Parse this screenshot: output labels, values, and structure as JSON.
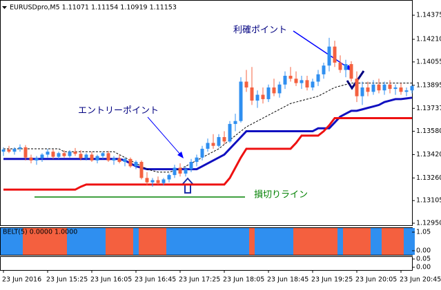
{
  "chart_data": [
    {
      "type": "candlestick",
      "title": "EURUSDpro,M5  1.11071 1.11154 1.10919 1.11153",
      "categories": [
        "23 Jun 2016",
        null,
        null,
        null,
        null,
        null,
        null,
        null,
        "23 Jun 15:25",
        null,
        null,
        null,
        null,
        null,
        null,
        null,
        "23 Jun 16:05",
        null,
        null,
        null,
        null,
        null,
        null,
        null,
        "23 Jun 16:45",
        null,
        null,
        null,
        null,
        null,
        null,
        null,
        "23 Jun 17:25",
        null,
        null,
        null,
        null,
        null,
        null,
        null,
        "23 Jun 18:05",
        null,
        null,
        null,
        null,
        null,
        null,
        null,
        "23 Jun 18:45",
        null,
        null,
        null,
        null,
        null,
        null,
        null,
        "23 Jun 19:25",
        null,
        null,
        null,
        null,
        null,
        null,
        null,
        "23 Jun 20:05",
        null,
        null,
        null,
        null,
        null,
        null,
        null,
        "23 Jun 20:45",
        null,
        null
      ],
      "open": [
        1.1344,
        1.13455,
        1.1344,
        1.1346,
        1.1347,
        1.134,
        1.1338,
        1.13395,
        1.1342,
        1.1344,
        1.13405,
        1.1343,
        1.1341,
        1.1344,
        1.13425,
        1.13395,
        1.1342,
        1.1338,
        1.1341,
        1.1343,
        1.1338,
        1.13395,
        1.1337,
        1.1339,
        1.1334,
        1.1337,
        1.1326,
        1.1323,
        1.13245,
        1.13225,
        1.1325,
        1.1328,
        1.1333,
        1.1329,
        1.1332,
        1.1337,
        1.134,
        1.1346,
        1.135,
        1.1348,
        1.1354,
        1.1351,
        1.1363,
        1.1365,
        1.1392,
        1.1388,
        1.1379,
        1.1383,
        1.138,
        1.1388,
        1.1384,
        1.139,
        1.1396,
        1.1394,
        1.1391,
        1.1393,
        1.1388,
        1.1392,
        1.1397,
        1.1403,
        1.1416,
        1.1405,
        1.14,
        1.1404,
        1.1394,
        1.1382,
        1.1388,
        1.1385,
        1.139,
        1.1386,
        1.139,
        1.1387,
        1.1388,
        1.1385,
        1.1386
      ],
      "high": [
        1.1347,
        1.1348,
        1.1347,
        1.1349,
        1.13485,
        1.1342,
        1.1341,
        1.1343,
        1.1346,
        1.13455,
        1.1344,
        1.1345,
        1.1345,
        1.13465,
        1.1345,
        1.1343,
        1.1344,
        1.1342,
        1.1344,
        1.13445,
        1.1341,
        1.1342,
        1.134,
        1.134,
        1.1338,
        1.1338,
        1.133,
        1.1326,
        1.1327,
        1.1326,
        1.1329,
        1.1335,
        1.1336,
        1.1334,
        1.1339,
        1.1342,
        1.1348,
        1.1353,
        1.1356,
        1.1356,
        1.1358,
        1.1365,
        1.137,
        1.1395,
        1.14,
        1.1402,
        1.1386,
        1.1388,
        1.139,
        1.1394,
        1.1392,
        1.1399,
        1.1402,
        1.1399,
        1.1396,
        1.1396,
        1.1394,
        1.14,
        1.1405,
        1.1422,
        1.142,
        1.141,
        1.1407,
        1.1406,
        1.1399,
        1.1392,
        1.1392,
        1.1393,
        1.1394,
        1.1392,
        1.1393,
        1.139,
        1.1391,
        1.1388,
        1.139
      ],
      "low": [
        1.1341,
        1.1343,
        1.1342,
        1.1344,
        1.1338,
        1.1336,
        1.1335,
        1.1337,
        1.134,
        1.1339,
        1.1339,
        1.134,
        1.134,
        1.1341,
        1.1338,
        1.1338,
        1.1337,
        1.1336,
        1.1339,
        1.1337,
        1.1335,
        1.1336,
        1.1334,
        1.1333,
        1.1332,
        1.1325,
        1.1321,
        1.132,
        1.13215,
        1.1321,
        1.1323,
        1.1326,
        1.1327,
        1.1327,
        1.133,
        1.1334,
        1.1338,
        1.1344,
        1.1346,
        1.1347,
        1.1349,
        1.135,
        1.1358,
        1.1364,
        1.1385,
        1.1376,
        1.1374,
        1.1377,
        1.1378,
        1.1382,
        1.1381,
        1.1387,
        1.1392,
        1.1389,
        1.1387,
        1.1386,
        1.1386,
        1.1389,
        1.1394,
        1.1399,
        1.1402,
        1.1398,
        1.1395,
        1.1392,
        1.1378,
        1.1376,
        1.1382,
        1.1383,
        1.1384,
        1.1383,
        1.1384,
        1.1383,
        1.1383,
        1.1382,
        1.1384
      ],
      "close": [
        1.13455,
        1.1344,
        1.1346,
        1.1347,
        1.134,
        1.1338,
        1.13395,
        1.1342,
        1.1344,
        1.13405,
        1.1343,
        1.1341,
        1.1344,
        1.13425,
        1.13395,
        1.1342,
        1.1338,
        1.1341,
        1.1343,
        1.1338,
        1.13395,
        1.1337,
        1.1339,
        1.1334,
        1.1337,
        1.1326,
        1.1323,
        1.13245,
        1.13225,
        1.1325,
        1.1328,
        1.1333,
        1.1329,
        1.1332,
        1.1337,
        1.134,
        1.1346,
        1.135,
        1.1348,
        1.1354,
        1.1351,
        1.1363,
        1.1365,
        1.1392,
        1.1388,
        1.1379,
        1.1383,
        1.138,
        1.1388,
        1.1384,
        1.139,
        1.1396,
        1.1394,
        1.1391,
        1.1393,
        1.1388,
        1.1392,
        1.1397,
        1.1403,
        1.1416,
        1.1405,
        1.14,
        1.1404,
        1.1394,
        1.1382,
        1.1388,
        1.1385,
        1.139,
        1.1386,
        1.139,
        1.1387,
        1.1388,
        1.1385,
        1.1386,
        1.1389
      ],
      "up_color": "#2f8ff0",
      "down_color": "#f4603f",
      "lines": [
        {
          "color": "#1010c0",
          "width": 3,
          "dashed": false,
          "values": [
            1.1339,
            1.1339,
            1.1339,
            1.1339,
            1.1339,
            1.1339,
            1.1339,
            1.1339,
            1.1339,
            1.1339,
            1.1339,
            1.1339,
            1.1339,
            1.1339,
            1.1339,
            1.1339,
            1.1339,
            1.1339,
            1.1339,
            1.1339,
            1.1339,
            1.1339,
            1.1338,
            1.1336,
            1.1334,
            1.1333,
            1.1332,
            1.1332,
            1.1332,
            1.1332,
            1.1332,
            1.1332,
            1.1332,
            1.1332,
            1.1332,
            1.1332,
            1.1334,
            1.1336,
            1.1338,
            1.134,
            1.1342,
            1.1346,
            1.135,
            1.1354,
            1.1358,
            1.1358,
            1.1358,
            1.1358,
            1.1358,
            1.1358,
            1.1358,
            1.1358,
            1.1358,
            1.1358,
            1.1358,
            1.1358,
            1.1358,
            1.136,
            1.136,
            1.136,
            1.1364,
            1.1368,
            1.137,
            1.1372,
            1.1372,
            1.1373,
            1.1374,
            1.1375,
            1.1376,
            1.1378,
            1.1379,
            1.138,
            1.138,
            1.13805,
            1.1381
          ]
        },
        {
          "color": "#ee1111",
          "width": 3,
          "dashed": false,
          "values": [
            1.1318,
            1.1318,
            1.1318,
            1.1318,
            1.1318,
            1.1318,
            1.1318,
            1.1318,
            1.1318,
            1.1318,
            1.1318,
            1.1318,
            1.1318,
            1.1318,
            1.132,
            1.13215,
            1.13215,
            1.13215,
            1.13215,
            1.13215,
            1.13215,
            1.13215,
            1.13215,
            1.13215,
            1.13215,
            1.13215,
            1.13215,
            1.13215,
            1.13215,
            1.13215,
            1.13215,
            1.13215,
            1.13215,
            1.13215,
            1.13215,
            1.13215,
            1.13215,
            1.13215,
            1.13215,
            1.13215,
            1.13215,
            1.1326,
            1.1333,
            1.134,
            1.1346,
            1.1346,
            1.1346,
            1.1346,
            1.1346,
            1.1346,
            1.1346,
            1.1346,
            1.1346,
            1.135,
            1.1355,
            1.1355,
            1.1355,
            1.1355,
            1.1358,
            1.1362,
            1.1367,
            1.1367,
            1.1367,
            1.1367,
            1.1367,
            1.1367,
            1.1367,
            1.1367,
            1.1367,
            1.1367,
            1.1367,
            1.1367,
            1.1367,
            1.1367,
            1.1367
          ]
        },
        {
          "color": "#000000",
          "width": 1,
          "dashed": true,
          "values": [
            1.1346,
            1.1346,
            1.1346,
            1.1346,
            1.1346,
            1.1346,
            1.1346,
            1.1346,
            1.1346,
            1.1346,
            1.1346,
            1.1344,
            1.1344,
            1.1344,
            1.1344,
            1.1344,
            1.1344,
            1.1344,
            1.1344,
            1.1344,
            1.1344,
            1.1342,
            1.134,
            1.1338,
            1.1336,
            1.1334,
            1.1332,
            1.1331,
            1.133,
            1.133,
            1.133,
            1.1331,
            1.1332,
            1.1334,
            1.1336,
            1.1338,
            1.134,
            1.1342,
            1.1344,
            1.1346,
            1.1349,
            1.1352,
            1.1355,
            1.1358,
            1.1361,
            1.1363,
            1.1365,
            1.1367,
            1.1369,
            1.1371,
            1.1373,
            1.1375,
            1.1377,
            1.1378,
            1.1379,
            1.138,
            1.1381,
            1.1382,
            1.1384,
            1.1386,
            1.1388,
            1.1389,
            1.139,
            1.1391,
            1.1391,
            1.1391,
            1.1391,
            1.1391,
            1.1391,
            1.1391,
            1.1391,
            1.1391,
            1.1391,
            1.1391,
            1.1391
          ]
        }
      ],
      "ylim": [
        1.12936,
        1.14432
      ],
      "yticks": [
        1.14375,
        {
          "value": 1.1421,
          "label": "1.14210"
        },
        1.14055,
        1.13895,
        1.13737,
        {
          "value": 1.1358,
          "label": "1.13580"
        },
        {
          "value": 1.1342,
          "label": "1.13420"
        },
        {
          "value": 1.1326,
          "label": "1.13260"
        },
        1.13105,
        {
          "value": 1.1295,
          "label": "1.12950"
        }
      ],
      "annotations": [
        {
          "text": "利確ポイント",
          "color": "#000080"
        },
        {
          "text": "エントリーポイント",
          "color": "#000080"
        },
        {
          "text": "損切りライン",
          "color": "#008000"
        }
      ]
    },
    {
      "type": "belt",
      "title": "BELT(5) 0.0000 1.0000",
      "values": [
        1,
        1,
        1,
        1,
        0,
        0,
        0,
        0,
        0,
        0,
        0,
        0,
        1,
        1,
        1,
        1,
        1,
        1,
        1,
        0,
        0,
        0,
        0,
        0,
        1,
        0,
        0,
        0,
        0,
        0,
        1,
        1,
        1,
        1,
        1,
        1,
        1,
        1,
        1,
        1,
        1,
        1,
        1,
        1,
        1,
        0,
        1,
        1,
        1,
        1,
        1,
        1,
        1,
        0,
        0,
        0,
        0,
        0,
        0,
        0,
        0,
        1,
        0,
        0,
        0,
        0,
        0,
        1,
        1,
        0,
        0,
        0,
        0,
        1,
        1
      ],
      "up_color": "#2f8ff0",
      "down_color": "#f4603f",
      "ylim": [
        0,
        1.05
      ],
      "yticks": [
        1.05,
        {
          "value": 0,
          "label": "0.00"
        }
      ]
    },
    {
      "type": "empty",
      "ylim": [
        0,
        0.05
      ],
      "yticks": [
        0.05,
        {
          "value": 0,
          "label": "0.00"
        }
      ]
    }
  ]
}
